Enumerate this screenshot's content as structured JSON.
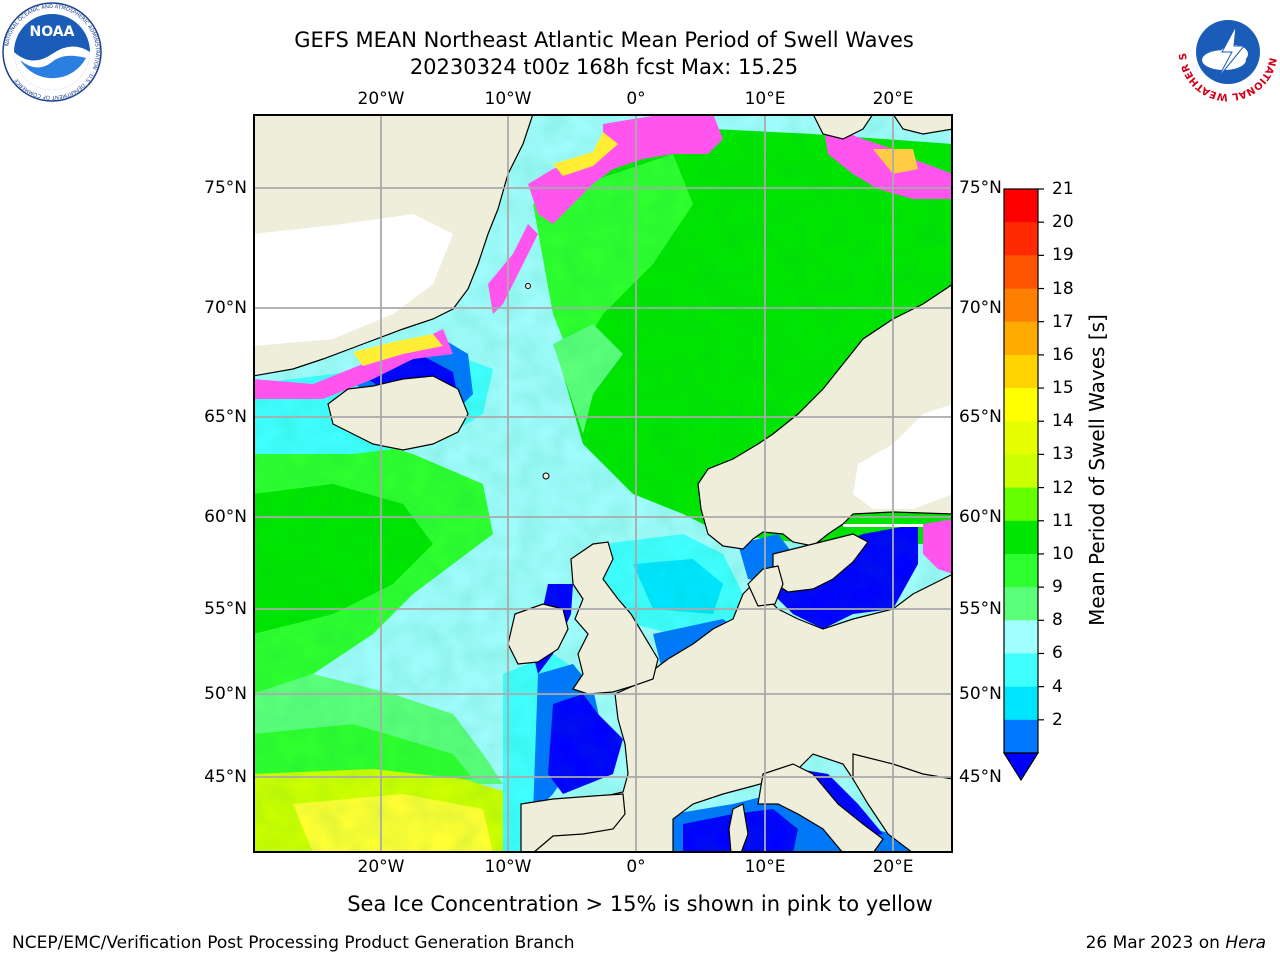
{
  "title": {
    "line1": "GEFS MEAN Northeast Atlantic Mean Period of Swell Waves",
    "line2": "20230324 t00z 168h fcst   Max: 15.25"
  },
  "axes": {
    "top_ticks": [
      "20°W",
      "10°W",
      "0°",
      "10°E",
      "20°E"
    ],
    "bottom_ticks": [
      "20°W",
      "10°W",
      "0°",
      "10°E",
      "20°E"
    ],
    "left_ticks": [
      "75°N",
      "70°N",
      "65°N",
      "60°N",
      "55°N",
      "50°N",
      "45°N"
    ],
    "right_ticks": [
      "75°N",
      "70°N",
      "65°N",
      "60°N",
      "55°N",
      "50°N",
      "45°N"
    ]
  },
  "colorbar": {
    "label": "Mean Period of Swell Waves [s]",
    "ticks": [
      "21",
      "20",
      "19",
      "18",
      "17",
      "16",
      "15",
      "14",
      "13",
      "12",
      "11",
      "10",
      "9",
      "8",
      "6",
      "4",
      "2"
    ],
    "colors": [
      "#ff0000",
      "#ff2a00",
      "#ff5500",
      "#ff7f00",
      "#ffaa00",
      "#ffd400",
      "#ffff00",
      "#e6ff00",
      "#ccff00",
      "#66ff00",
      "#00e600",
      "#2eff2e",
      "#5cff7a",
      "#a0ffff",
      "#40ffff",
      "#00e5ff",
      "#0077ff"
    ],
    "extend_color": "#0000ff"
  },
  "footnote": "Sea Ice Concentration > 15% is shown in pink to yellow",
  "credit": {
    "left": "NCEP/EMC/Verification Post Processing Product Generation Branch",
    "right_date": "26 Mar 2023 on",
    "right_host": "Hera"
  },
  "logos": {
    "noaa_text": "NOAA",
    "noaa_ring": "NATIONAL OCEANIC AND ATMOSPHERIC ADMINISTRATION · U.S. DEPARTMENT OF COMMERCE",
    "nws_ring": "NATIONAL WEATHER SERVICE"
  }
}
